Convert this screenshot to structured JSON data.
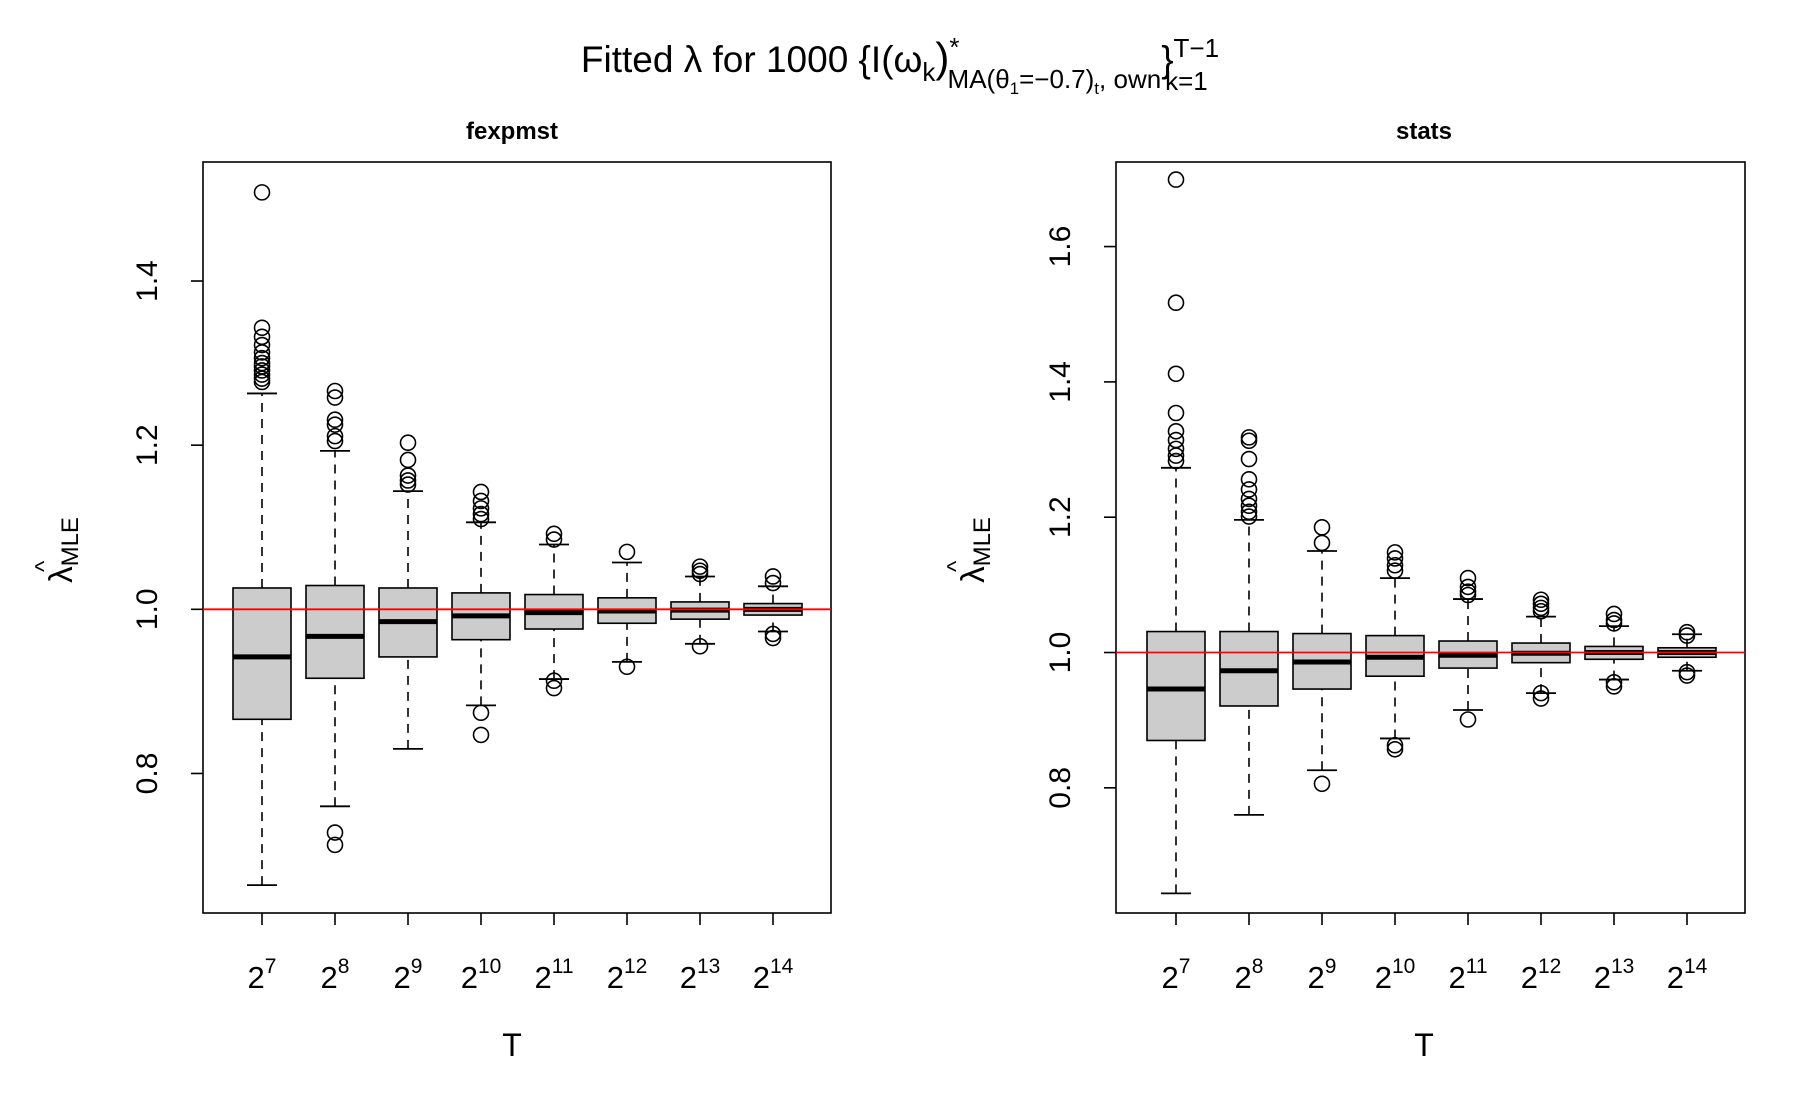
{
  "title": {
    "prefix": "Fitted λ for 1000 {I(ω",
    "omega_sub": "k",
    "close_paren": ")",
    "star": "*",
    "ma_open": "MA(θ",
    "theta_sub": "1",
    "theta_rest": "=−0.7)",
    "t_sub": "t",
    "own": ", own",
    "brace": "}",
    "upper": "T−1",
    "lower": "k=1"
  },
  "ylabel": {
    "hat": "^",
    "lambda": "λ",
    "sub": "MLE"
  },
  "chart_data": [
    {
      "type": "box",
      "title": "fexpmst",
      "xlabel": "T",
      "ylabel": "λ̂ MLE",
      "categories": [
        {
          "base": "2",
          "exp": "7"
        },
        {
          "base": "2",
          "exp": "8"
        },
        {
          "base": "2",
          "exp": "9"
        },
        {
          "base": "2",
          "exp": "10"
        },
        {
          "base": "2",
          "exp": "11"
        },
        {
          "base": "2",
          "exp": "12"
        },
        {
          "base": "2",
          "exp": "13"
        },
        {
          "base": "2",
          "exp": "14"
        }
      ],
      "ylim": [
        0.63,
        1.545
      ],
      "yticks": [
        0.8,
        1.0,
        1.2,
        1.4
      ],
      "ytick_labels": [
        "0.8",
        "1.0",
        "1.2",
        "1.4"
      ],
      "reference_line": {
        "y": 1.0,
        "color": "#ff0000"
      },
      "box_fill": "#cccccc",
      "boxes": [
        {
          "whisker_low": 0.664,
          "q1": 0.866,
          "median": 0.942,
          "q3": 1.026,
          "whisker_high": 1.263,
          "outliers": [
            1.508,
            1.343,
            1.332,
            1.322,
            1.313,
            1.306,
            1.3,
            1.296,
            1.291,
            1.286,
            1.281,
            1.277
          ]
        },
        {
          "whisker_low": 0.76,
          "q1": 0.916,
          "median": 0.967,
          "q3": 1.029,
          "whisker_high": 1.193,
          "outliers": [
            1.266,
            1.258,
            1.231,
            1.225,
            1.211,
            1.205,
            0.728,
            0.713
          ]
        },
        {
          "whisker_low": 0.83,
          "q1": 0.942,
          "median": 0.985,
          "q3": 1.026,
          "whisker_high": 1.144,
          "outliers": [
            1.203,
            1.182,
            1.163,
            1.157,
            1.152
          ]
        },
        {
          "whisker_low": 0.883,
          "q1": 0.963,
          "median": 0.992,
          "q3": 1.02,
          "whisker_high": 1.106,
          "outliers": [
            1.143,
            1.132,
            1.123,
            1.116,
            1.11,
            0.874,
            0.847
          ]
        },
        {
          "whisker_low": 0.915,
          "q1": 0.976,
          "median": 0.996,
          "q3": 1.018,
          "whisker_high": 1.079,
          "outliers": [
            1.092,
            1.085,
            0.913,
            0.904
          ]
        },
        {
          "whisker_low": 0.936,
          "q1": 0.983,
          "median": 0.998,
          "q3": 1.014,
          "whisker_high": 1.057,
          "outliers": [
            1.07,
            0.93
          ]
        },
        {
          "whisker_low": 0.958,
          "q1": 0.988,
          "median": 0.999,
          "q3": 1.009,
          "whisker_high": 1.04,
          "outliers": [
            1.052,
            1.047,
            1.043,
            0.955
          ]
        },
        {
          "whisker_low": 0.973,
          "q1": 0.993,
          "median": 1.0,
          "q3": 1.007,
          "whisker_high": 1.028,
          "outliers": [
            1.04,
            1.032,
            0.97,
            0.965
          ]
        }
      ]
    },
    {
      "type": "box",
      "title": "stats",
      "xlabel": "T",
      "ylabel": "λ̂ MLE",
      "categories": [
        {
          "base": "2",
          "exp": "7"
        },
        {
          "base": "2",
          "exp": "8"
        },
        {
          "base": "2",
          "exp": "9"
        },
        {
          "base": "2",
          "exp": "10"
        },
        {
          "base": "2",
          "exp": "11"
        },
        {
          "base": "2",
          "exp": "12"
        },
        {
          "base": "2",
          "exp": "13"
        },
        {
          "base": "2",
          "exp": "14"
        }
      ],
      "ylim": [
        0.615,
        1.725
      ],
      "yticks": [
        0.8,
        1.0,
        1.2,
        1.4,
        1.6
      ],
      "ytick_labels": [
        "0.8",
        "1.0",
        "1.2",
        "1.4",
        "1.6"
      ],
      "reference_line": {
        "y": 1.0,
        "color": "#ff0000"
      },
      "box_fill": "#cccccc",
      "boxes": [
        {
          "whisker_low": 0.644,
          "q1": 0.87,
          "median": 0.946,
          "q3": 1.031,
          "whisker_high": 1.273,
          "outliers": [
            1.699,
            1.517,
            1.412,
            1.354,
            1.327,
            1.314,
            1.301,
            1.291,
            1.283
          ]
        },
        {
          "whisker_low": 0.76,
          "q1": 0.921,
          "median": 0.973,
          "q3": 1.031,
          "whisker_high": 1.196,
          "outliers": [
            1.318,
            1.313,
            1.286,
            1.256,
            1.241,
            1.227,
            1.217,
            1.208,
            1.201
          ]
        },
        {
          "whisker_low": 0.826,
          "q1": 0.946,
          "median": 0.986,
          "q3": 1.028,
          "whisker_high": 1.15,
          "outliers": [
            1.185,
            1.162,
            0.806
          ]
        },
        {
          "whisker_low": 0.873,
          "q1": 0.965,
          "median": 0.993,
          "q3": 1.025,
          "whisker_high": 1.11,
          "outliers": [
            1.148,
            1.139,
            1.129,
            1.121,
            0.863,
            0.857
          ]
        },
        {
          "whisker_low": 0.915,
          "q1": 0.977,
          "median": 0.996,
          "q3": 1.017,
          "whisker_high": 1.079,
          "outliers": [
            1.11,
            1.097,
            1.09,
            1.085,
            0.901
          ]
        },
        {
          "whisker_low": 0.94,
          "q1": 0.985,
          "median": 0.999,
          "q3": 1.014,
          "whisker_high": 1.053,
          "outliers": [
            1.078,
            1.072,
            1.066,
            1.061,
            0.94,
            0.932
          ]
        },
        {
          "whisker_low": 0.96,
          "q1": 0.99,
          "median": 1.0,
          "q3": 1.009,
          "whisker_high": 1.039,
          "outliers": [
            1.057,
            1.048,
            1.043,
            0.956,
            0.95
          ]
        },
        {
          "whisker_low": 0.973,
          "q1": 0.993,
          "median": 1.0,
          "q3": 1.007,
          "whisker_high": 1.027,
          "outliers": [
            1.03,
            1.025,
            0.971,
            0.966
          ]
        }
      ]
    }
  ]
}
